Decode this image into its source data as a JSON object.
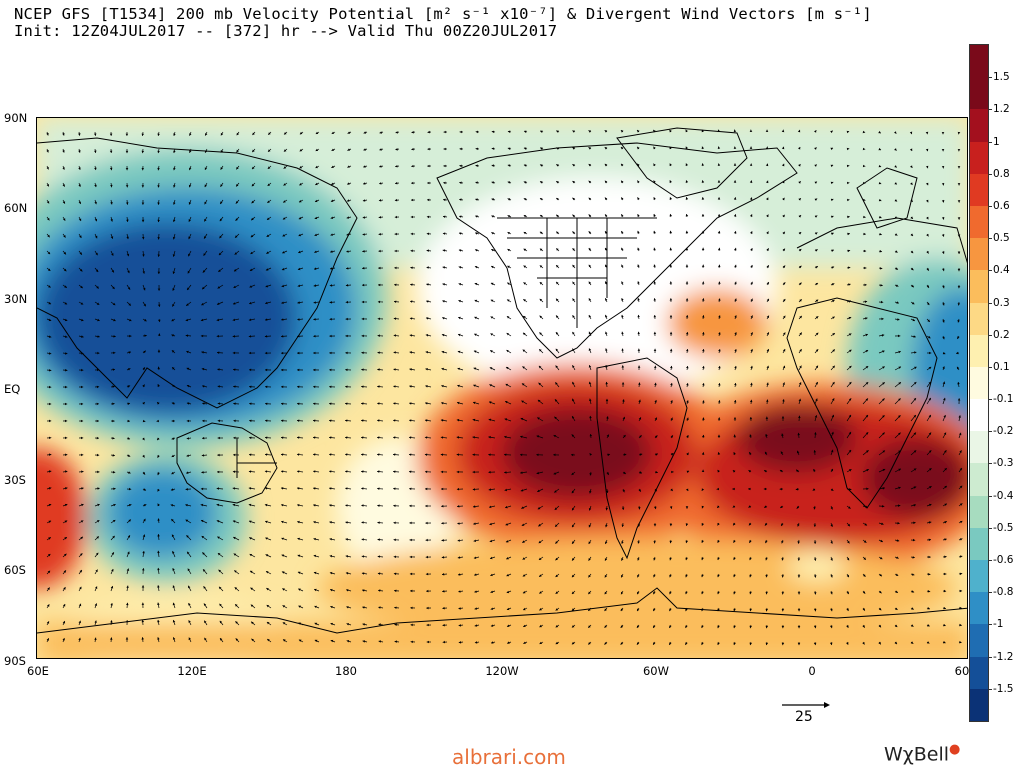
{
  "header": {
    "title_line1": "NCEP GFS [T1534] 200 mb Velocity Potential [m² s⁻¹ x10⁻⁷] & Divergent Wind Vectors [m s⁻¹]",
    "title_line2": "Init: 12Z04JUL2017 -- [372] hr --> Valid Thu 00Z20JUL2017"
  },
  "map": {
    "lat_labels": [
      "90N",
      "60N",
      "30N",
      "EQ",
      "30S",
      "60S",
      "90S"
    ],
    "lon_labels": [
      "60E",
      "120E",
      "180",
      "120W",
      "60W",
      "0",
      "60"
    ],
    "ocean_color": "#ffffff",
    "coast_color": "#000000",
    "vector_color": "#000000"
  },
  "colorbar": {
    "labels": [
      "1.5",
      "1.2",
      "1",
      "0.8",
      "0.6",
      "0.5",
      "0.4",
      "0.3",
      "0.2",
      "0.1",
      "-0.1",
      "-0.2",
      "-0.3",
      "-0.4",
      "-0.5",
      "-0.6",
      "-0.8",
      "-1",
      "-1.2",
      "-1.5"
    ],
    "colors": [
      "#7a0a1a",
      "#a3101e",
      "#c8201e",
      "#e03a22",
      "#f06a2e",
      "#f79640",
      "#fbbd5c",
      "#fdd985",
      "#fef0b0",
      "#fffbe0",
      "#ffffff",
      "#eaf6e6",
      "#cdebd0",
      "#a7dcbf",
      "#7ac9c0",
      "#4fb1cc",
      "#2f8fc6",
      "#1f6db2",
      "#144f98",
      "#0b3276"
    ]
  },
  "reference_vector": {
    "label": "25"
  },
  "footer": {
    "watermark": "albrari.com",
    "logo": "WχBell"
  }
}
